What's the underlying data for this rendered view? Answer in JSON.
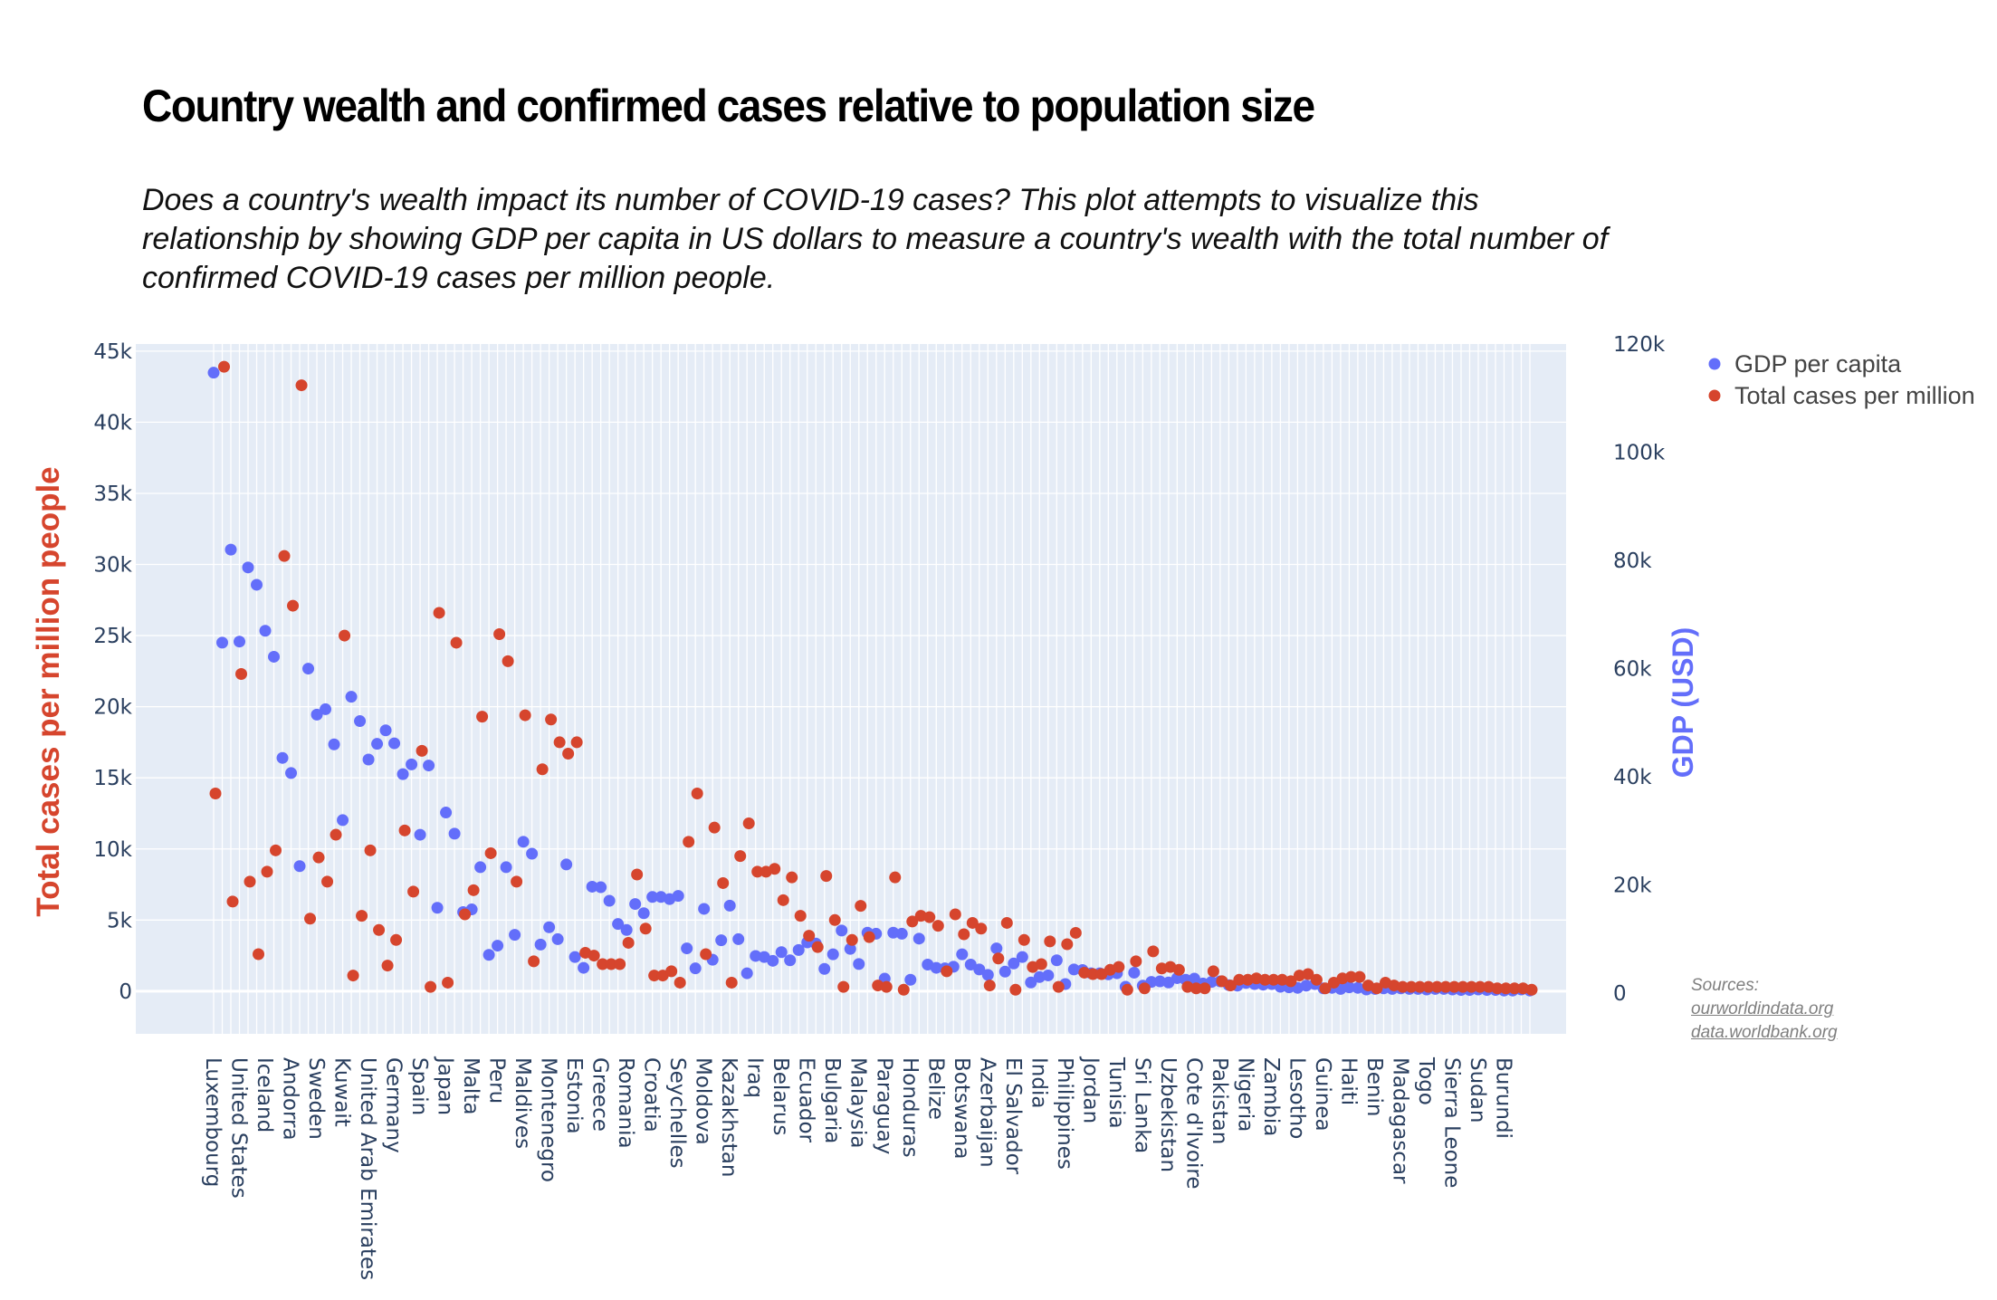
{
  "title": "Country wealth and confirmed cases relative to population size",
  "subtitle": "Does a country's wealth impact its number of COVID-19 cases? This plot attempts to visualize this relationship by showing GDP per capita in US dollars to measure a country's wealth with the total number of confirmed COVID-19 cases per million people.",
  "sources": {
    "label": "Sources:",
    "links": [
      "ourworldindata.org",
      "data.worldbank.org"
    ]
  },
  "colors": {
    "cases": "#d6452d",
    "gdp": "#636efa",
    "plot_bg": "#e5ecf6",
    "grid": "#ffffff",
    "tick_text": "#2a3f5f"
  },
  "chart_data": {
    "type": "scatter",
    "title": "Country wealth and confirmed cases relative to population size",
    "legend_position": "top-right",
    "grid": true,
    "y_left": {
      "label": "Total cases per million people",
      "range": [
        -3000,
        45500
      ],
      "ticks": [
        0,
        5000,
        10000,
        15000,
        20000,
        25000,
        30000,
        35000,
        40000,
        45000
      ],
      "tick_labels": [
        "0",
        "5k",
        "10k",
        "15k",
        "20k",
        "25k",
        "30k",
        "35k",
        "40k",
        "45k"
      ]
    },
    "y_right": {
      "label": "GDP (USD)",
      "range": [
        -7500,
        120000
      ],
      "ticks": [
        0,
        20000,
        40000,
        60000,
        80000,
        100000,
        120000
      ],
      "tick_labels": [
        "0",
        "20k",
        "40k",
        "60k",
        "80k",
        "100k",
        "120k"
      ]
    },
    "labeled_categories": [
      "Luxembourg",
      "United States",
      "Iceland",
      "Andorra",
      "Sweden",
      "Kuwait",
      "United Arab Emirates",
      "Germany",
      "Spain",
      "Japan",
      "Malta",
      "Peru",
      "Maldives",
      "Montenegro",
      "Estonia",
      "Greece",
      "Romania",
      "Croatia",
      "Seychelles",
      "Moldova",
      "Kazakhstan",
      "Iraq",
      "Belarus",
      "Ecuador",
      "Bulgaria",
      "Malaysia",
      "Paraguay",
      "Honduras",
      "Belize",
      "Botswana",
      "Azerbaijan",
      "El Salvador",
      "India",
      "Philippines",
      "Jordan",
      "Tunisia",
      "Sri Lanka",
      "Uzbekistan",
      "Cote d'Ivoire",
      "Pakistan",
      "Nigeria",
      "Zambia",
      "Lesotho",
      "Guinea",
      "Haiti",
      "Benin",
      "Madagascar",
      "Togo",
      "Sierra Leone",
      "Sudan",
      "Burundi"
    ],
    "series": [
      {
        "name": "GDP per capita",
        "axis": "right",
        "values": [
          114700,
          64800,
          82000,
          65000,
          78700,
          75500,
          67000,
          62200,
          43500,
          40700,
          23500,
          60000,
          51500,
          52500,
          46000,
          32000,
          54800,
          50300,
          43200,
          46100,
          48600,
          46200,
          40500,
          42300,
          29300,
          42100,
          15800,
          33400,
          29500,
          15000,
          15500,
          23300,
          7100,
          8800,
          23300,
          10800,
          28000,
          25800,
          9000,
          12200,
          10000,
          23800,
          6700,
          4700,
          19700,
          19600,
          17100,
          12800,
          11700,
          16500,
          14800,
          17800,
          17800,
          17400,
          18000,
          8300,
          4600,
          15600,
          6200,
          9800,
          16200,
          10000,
          3700,
          6900,
          6700,
          6000,
          7600,
          6100,
          8000,
          9400,
          9200,
          4500,
          7200,
          11600,
          8200,
          5400,
          11200,
          11000,
          2700,
          11200,
          11000,
          2500,
          10100,
          5300,
          4700,
          4600,
          4900,
          7200,
          5300,
          4400,
          3400,
          8300,
          4000,
          5500,
          6700,
          2000,
          3000,
          3300,
          6100,
          1700,
          4400,
          4300,
          3700,
          3700,
          3500,
          3700,
          1200,
          3800,
          1400,
          2100,
          2200,
          2000,
          2800,
          2500,
          2700,
          1800,
          2100,
          2200,
          1500,
          1400,
          1900,
          1700,
          1600,
          1700,
          1200,
          1100,
          1000,
          1400,
          1700,
          900,
          1000,
          800,
          1100,
          1000,
          700,
          800,
          900,
          800,
          900,
          800,
          800,
          700,
          800,
          800,
          700,
          600,
          600,
          700,
          600,
          600,
          500,
          500,
          700,
          500
        ]
      },
      {
        "name": "Total cases per million",
        "axis": "left",
        "values": [
          13900,
          43900,
          6300,
          22300,
          7700,
          2600,
          8400,
          9900,
          30600,
          27100,
          42600,
          5100,
          9400,
          7700,
          11000,
          25000,
          1100,
          5300,
          9900,
          4300,
          1800,
          3600,
          11300,
          7000,
          16900,
          300,
          26600,
          600,
          24500,
          5400,
          7100,
          19300,
          9700,
          25100,
          23200,
          7700,
          19400,
          2100,
          15600,
          19100,
          17500,
          16700,
          17500,
          2700,
          2500,
          1900,
          1900,
          1900,
          3400,
          8200,
          4400,
          1100,
          1100,
          1400,
          600,
          10500,
          13900,
          2600,
          11500,
          7600,
          600,
          9500,
          11800,
          8400,
          8400,
          8600,
          6400,
          8000,
          5300,
          3900,
          3100,
          8100,
          5000,
          300,
          3600,
          6000,
          3800,
          400,
          300,
          8000,
          100,
          4900,
          5300,
          5200,
          4600,
          1400,
          5400,
          4000,
          4800,
          4400,
          400,
          2300,
          4800,
          100,
          3600,
          1700,
          1900,
          3500,
          300,
          3300,
          4100,
          1300,
          1200,
          1200,
          1500,
          1700,
          100,
          2100,
          200,
          2800,
          1600,
          1700,
          1500,
          300,
          200,
          200,
          1400,
          700,
          400,
          800,
          800,
          900,
          800,
          800,
          800,
          700,
          1100,
          1200,
          800,
          200,
          600,
          900,
          1000,
          1000,
          400,
          200,
          600,
          400,
          300,
          300,
          300,
          300,
          300,
          300,
          300,
          300,
          300,
          300,
          300,
          200,
          200,
          200,
          200,
          100
        ]
      }
    ]
  }
}
